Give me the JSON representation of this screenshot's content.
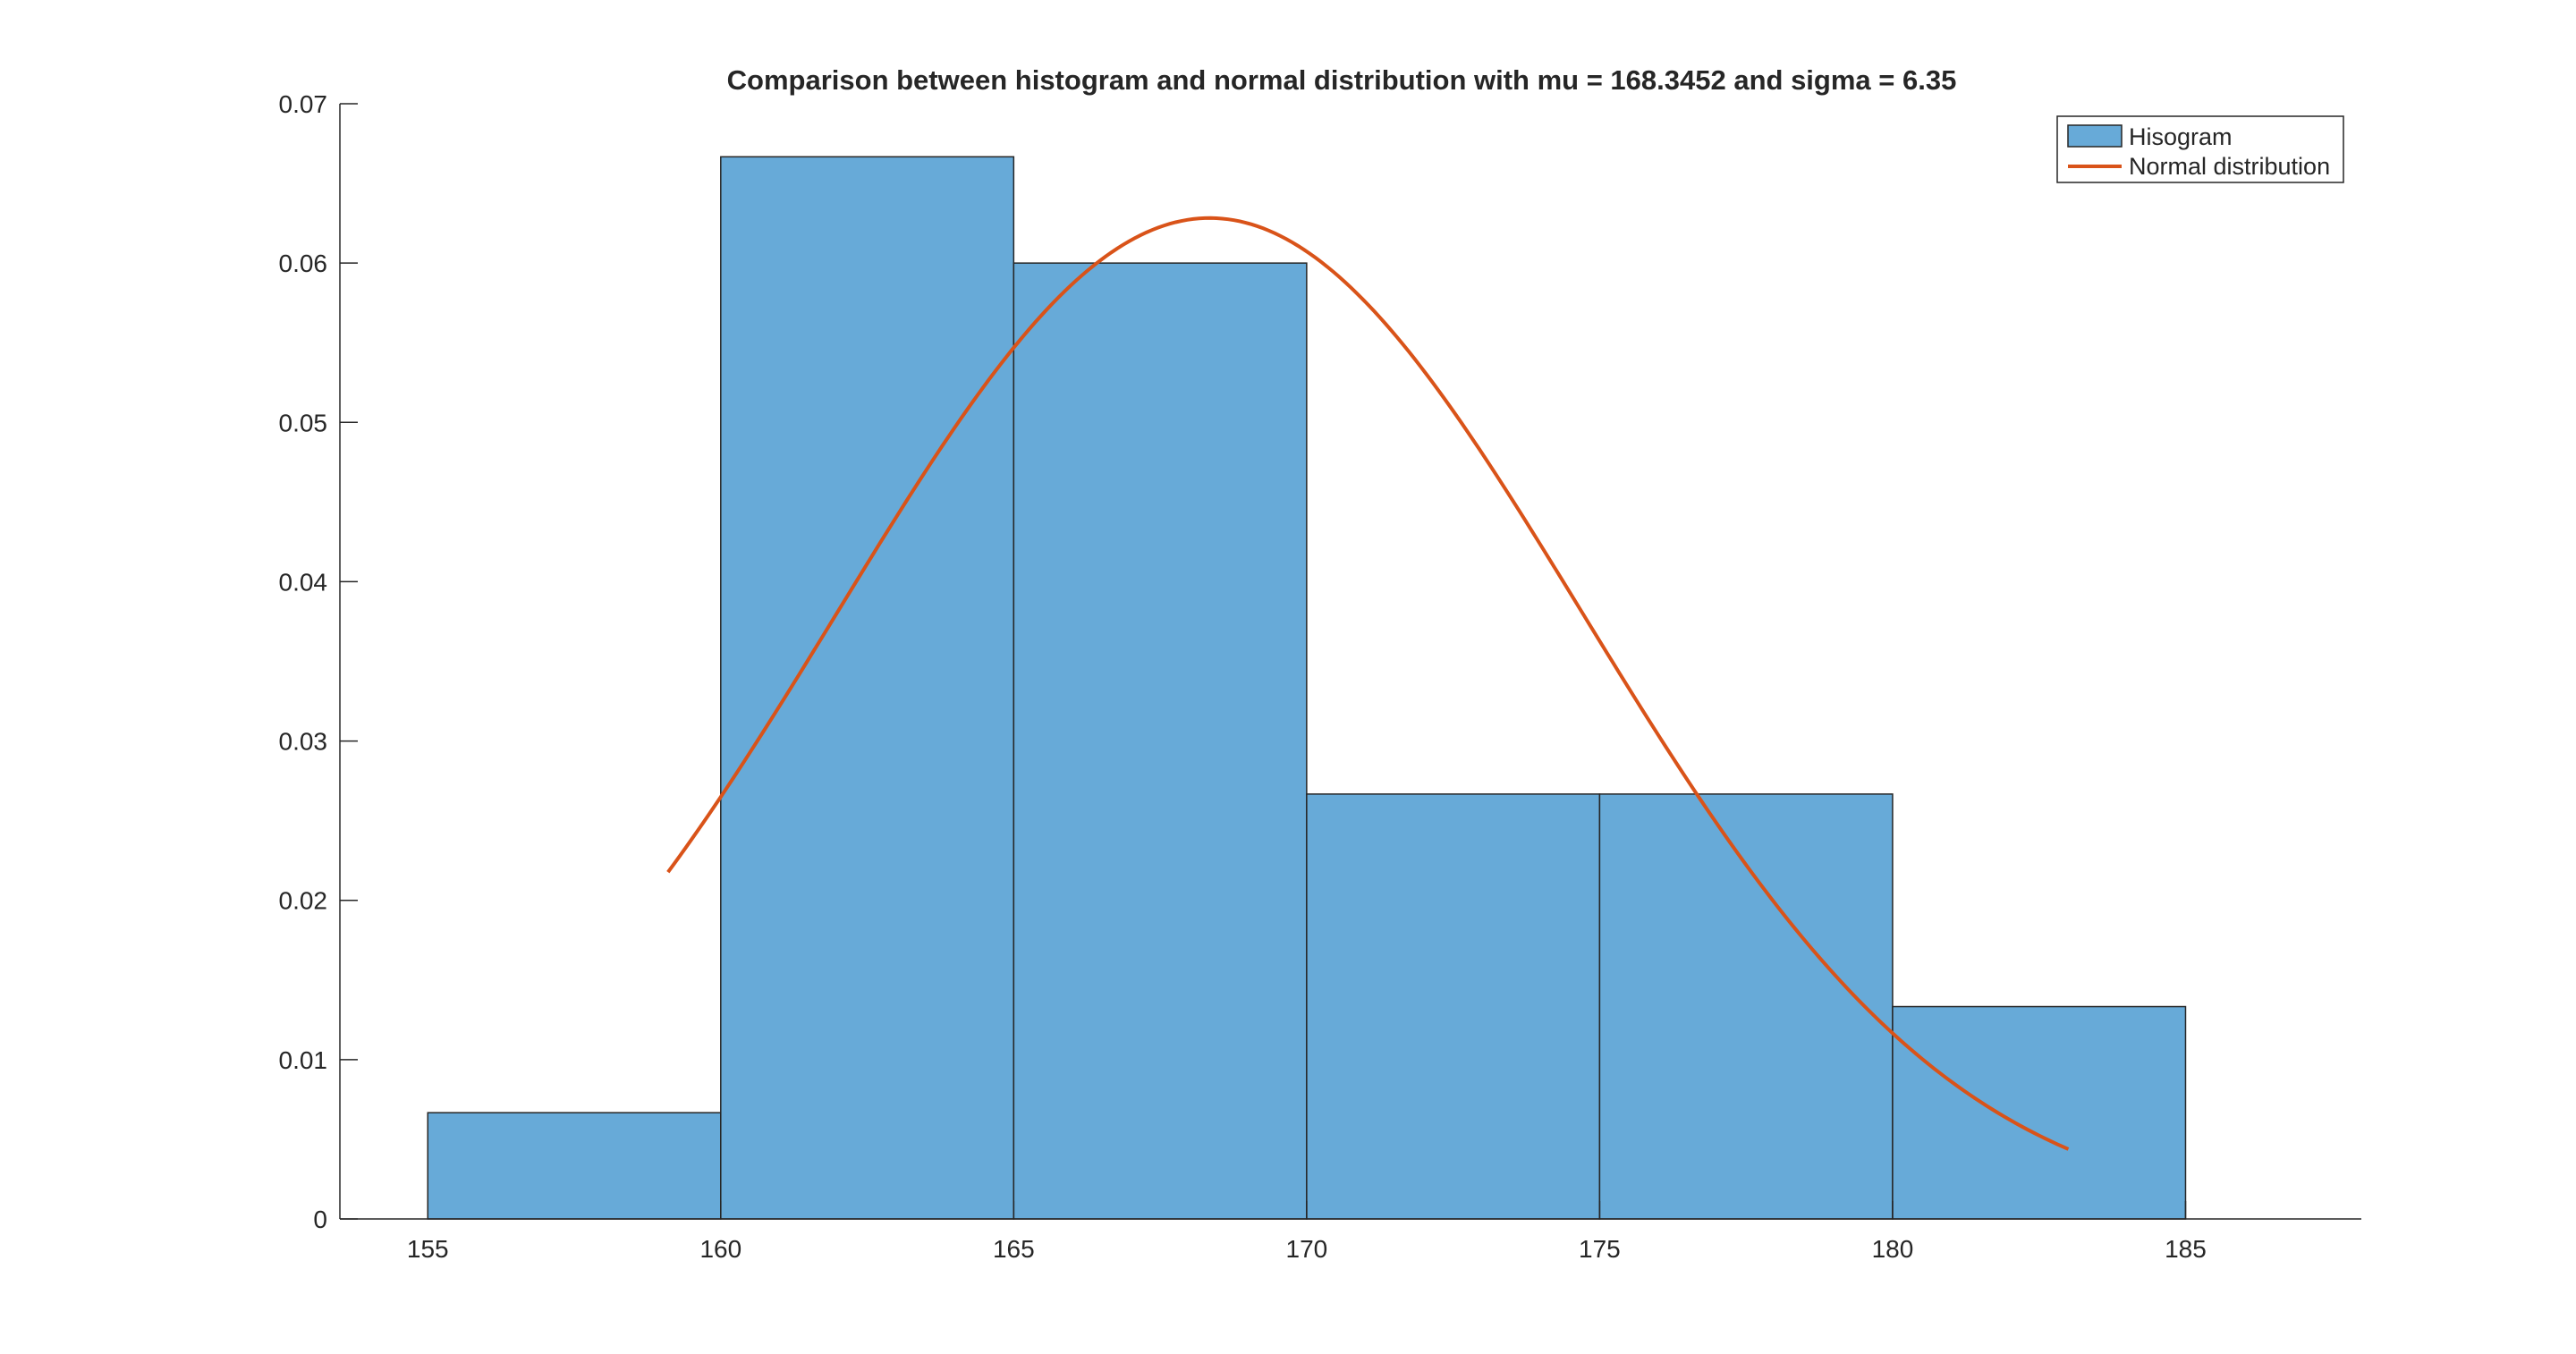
{
  "chart_data": {
    "type": "bar",
    "title": "Comparison between histogram and normal distribution with mu = 168.3452 and sigma = 6.35",
    "xlabel": "",
    "ylabel": "",
    "xlim": [
      153.5,
      188
    ],
    "ylim": [
      0,
      0.07
    ],
    "x_ticks": [
      155,
      160,
      165,
      170,
      175,
      180,
      185
    ],
    "x_tick_labels": [
      "155",
      "160",
      "165",
      "170",
      "175",
      "180",
      "185"
    ],
    "y_ticks": [
      0,
      0.01,
      0.02,
      0.03,
      0.04,
      0.05,
      0.06,
      0.07
    ],
    "y_tick_labels": [
      "0",
      "0.01",
      "0.02",
      "0.03",
      "0.04",
      "0.05",
      "0.06",
      "0.07"
    ],
    "grid": false,
    "legend_position": "top-right",
    "histogram": {
      "name": "Hisogram",
      "bin_edges": [
        155,
        160,
        165,
        170,
        175,
        180,
        185
      ],
      "values": [
        0.00667,
        0.06667,
        0.06,
        0.02667,
        0.02667,
        0.01333
      ],
      "color": "#67AAD8",
      "edge_color": "#262626"
    },
    "curve": {
      "name": "Normal distribution",
      "mu": 168.3452,
      "sigma": 6.35,
      "x_range": [
        159.1,
        183.0
      ],
      "color": "#D95319"
    }
  }
}
